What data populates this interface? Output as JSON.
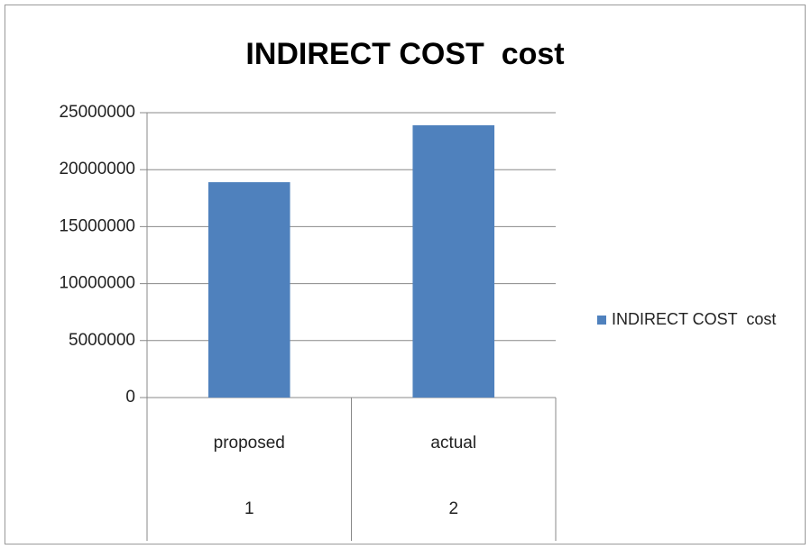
{
  "chart_data": {
    "type": "bar",
    "title": "INDIRECT COST  cost",
    "categories": [
      "proposed",
      "actual"
    ],
    "category_groups": [
      "1",
      "2"
    ],
    "series": [
      {
        "name": "INDIRECT COST  cost",
        "color": "#4f81bd",
        "values": [
          18900000,
          23900000
        ]
      }
    ],
    "ylim": [
      0,
      25000000
    ],
    "yticks": [
      0,
      5000000,
      10000000,
      15000000,
      20000000,
      25000000
    ],
    "grid": true,
    "legend": "right"
  }
}
